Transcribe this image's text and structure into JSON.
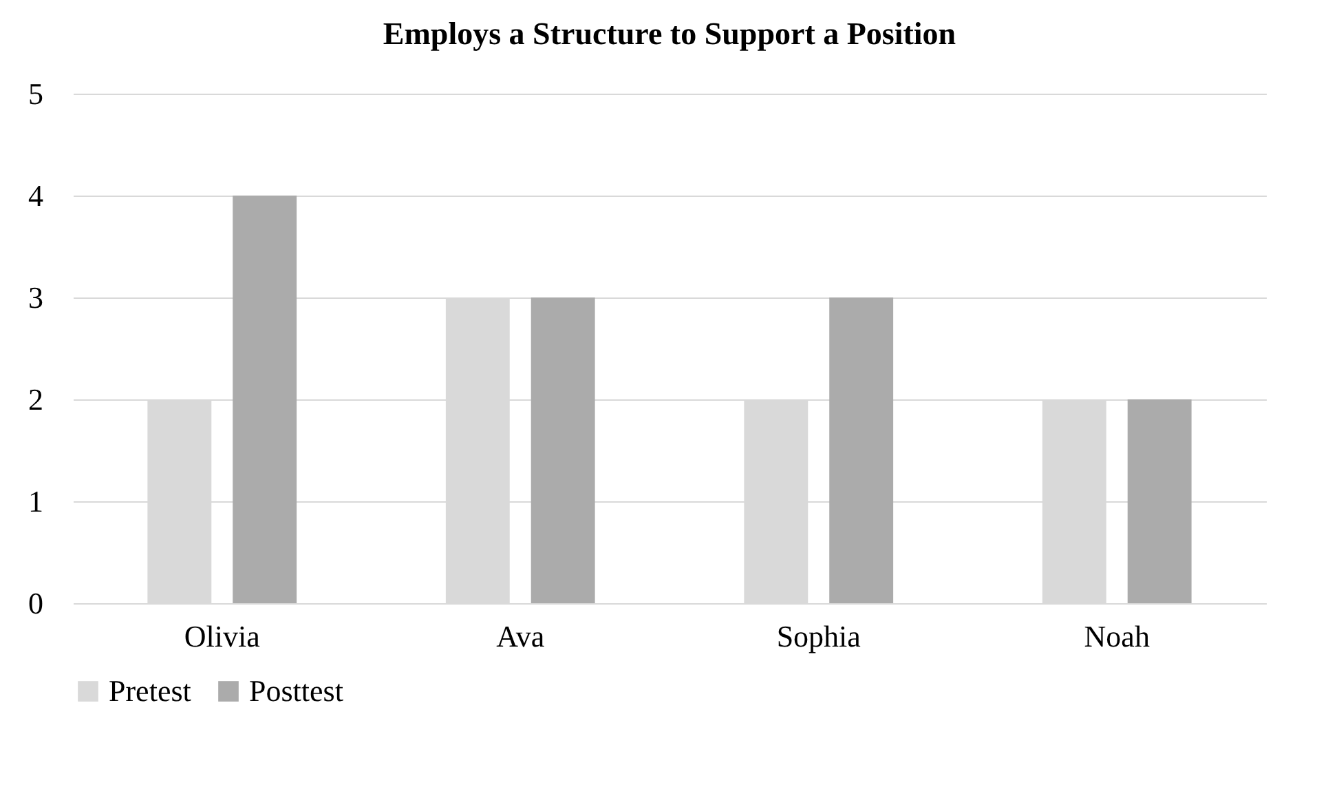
{
  "chart_data": {
    "type": "bar",
    "title": "Employs a Structure to Support a Position",
    "categories": [
      "Olivia",
      "Ava",
      "Sophia",
      "Noah"
    ],
    "series": [
      {
        "name": "Pretest",
        "color": "#d9d9d9",
        "values": [
          2,
          3,
          2,
          2
        ]
      },
      {
        "name": "Posttest",
        "color": "#ababab",
        "values": [
          4,
          3,
          3,
          2
        ]
      }
    ],
    "ylim": [
      0,
      5
    ],
    "yticks": [
      0,
      1,
      2,
      3,
      4,
      5
    ],
    "grid": "y",
    "legend": "bottom"
  }
}
